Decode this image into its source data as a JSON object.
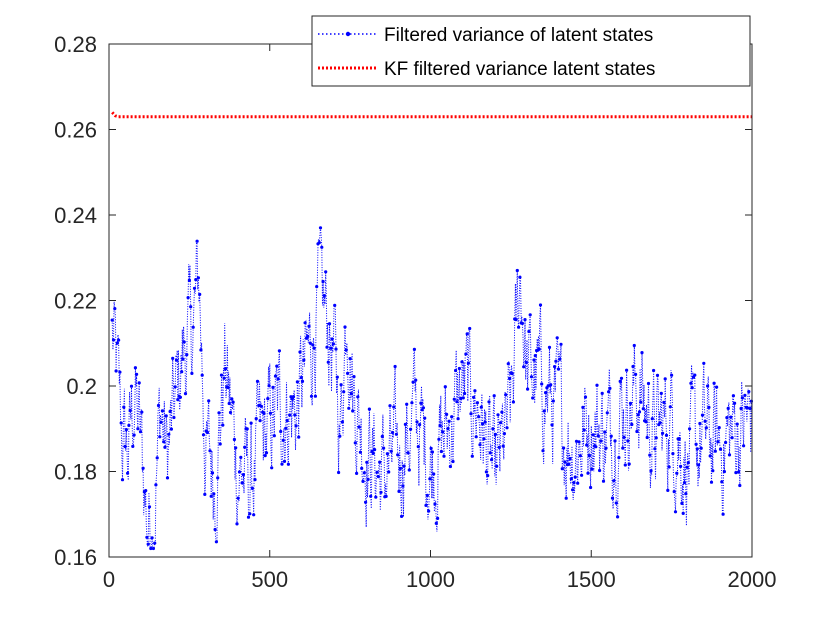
{
  "chart_data": {
    "type": "line",
    "title": "",
    "xlabel": "",
    "ylabel": "",
    "xlim": [
      0,
      2000
    ],
    "ylim": [
      0.16,
      0.28
    ],
    "x_ticks": [
      "0",
      "500",
      "1000",
      "1500",
      "2000"
    ],
    "y_ticks": [
      "0.16",
      "0.18",
      "0.2",
      "0.22",
      "0.24",
      "0.26",
      "0.28"
    ],
    "grid": false,
    "legend_position": "top-right",
    "series": [
      {
        "name": "Filtered variance of latent states",
        "color": "#0000ff",
        "style": "dotted-line-with-point-markers",
        "x_range": [
          10,
          2000
        ],
        "mean": 0.192,
        "min": 0.162,
        "max": 0.237,
        "x": [
          10,
          20,
          40,
          60,
          80,
          100,
          120,
          140,
          160,
          180,
          200,
          230,
          260,
          280,
          300,
          330,
          360,
          400,
          440,
          470,
          500,
          540,
          580,
          620,
          650,
          680,
          700,
          720,
          740,
          760,
          800,
          850,
          900,
          950,
          1000,
          1050,
          1100,
          1150,
          1200,
          1250,
          1280,
          1300,
          1350,
          1400,
          1450,
          1500,
          1550,
          1600,
          1650,
          1700,
          1750,
          1800,
          1850,
          1900,
          1950,
          2000
        ],
        "values": [
          0.212,
          0.205,
          0.188,
          0.184,
          0.199,
          0.185,
          0.168,
          0.172,
          0.195,
          0.183,
          0.192,
          0.208,
          0.213,
          0.225,
          0.185,
          0.179,
          0.205,
          0.181,
          0.177,
          0.186,
          0.19,
          0.196,
          0.194,
          0.206,
          0.219,
          0.215,
          0.206,
          0.19,
          0.222,
          0.199,
          0.186,
          0.179,
          0.183,
          0.193,
          0.182,
          0.189,
          0.199,
          0.195,
          0.176,
          0.193,
          0.227,
          0.203,
          0.2,
          0.192,
          0.186,
          0.193,
          0.188,
          0.196,
          0.199,
          0.188,
          0.193,
          0.182,
          0.188,
          0.186,
          0.19,
          0.192
        ]
      },
      {
        "name": "KF filtered variance latent states",
        "color": "#ff0000",
        "style": "dotted",
        "x": [
          10,
          20,
          30,
          2000
        ],
        "values": [
          0.264,
          0.2632,
          0.263,
          0.263
        ]
      }
    ]
  }
}
